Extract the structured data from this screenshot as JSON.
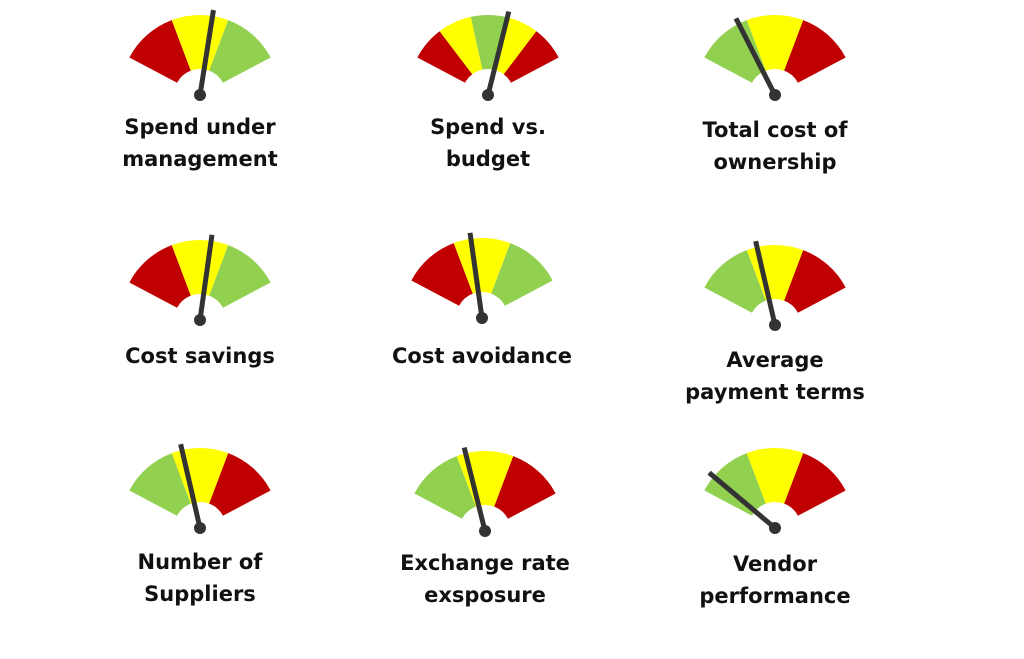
{
  "gauges": [
    {
      "label_lines": [
        "Spend under",
        "management"
      ]
    },
    {
      "label_lines": [
        "Spend vs.",
        "budget"
      ]
    },
    {
      "label_lines": [
        "Total cost of",
        "ownership"
      ]
    },
    {
      "label_lines": [
        "Cost savings"
      ]
    },
    {
      "label_lines": [
        "Cost avoidance"
      ]
    },
    {
      "label_lines": [
        "Average",
        "payment terms"
      ]
    },
    {
      "label_lines": [
        "Number of",
        "Suppliers"
      ]
    },
    {
      "label_lines": [
        "Exchange rate",
        "exsposure"
      ]
    },
    {
      "label_lines": [
        "Vendor",
        "performance"
      ]
    }
  ]
}
